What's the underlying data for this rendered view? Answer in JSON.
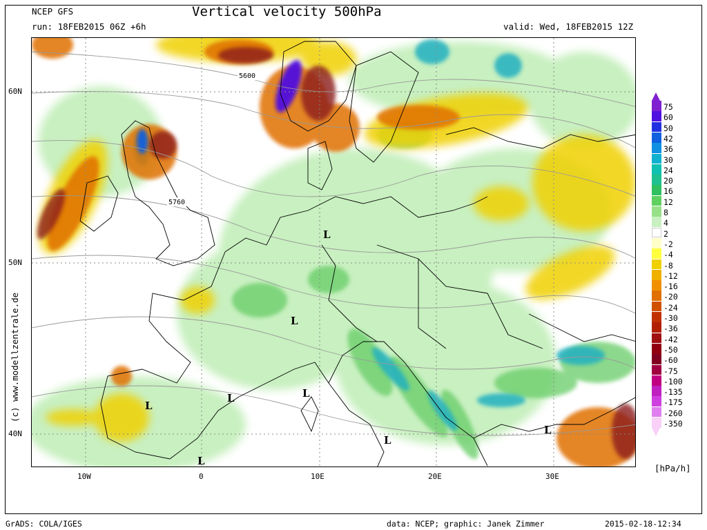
{
  "header": {
    "model": "NCEP GFS",
    "run": "run: 18FEB2015 06Z +6h",
    "title": "Vertical velocity 500hPa",
    "valid": "valid: Wed, 18FEB2015 12Z"
  },
  "map": {
    "lat_labels": [
      "60N",
      "50N",
      "40N"
    ],
    "lon_labels": [
      "10W",
      "0",
      "10E",
      "20E",
      "30E"
    ],
    "contour_labels": [
      "5600",
      "5760"
    ],
    "low_marker": "L",
    "colors": {
      "strong_up": "#8b1a1a",
      "up": "#d2691e",
      "weak_up": "#f0c020",
      "light_up": "#ffff80",
      "weak_down": "#c8f0c0",
      "down": "#66cc66",
      "strong_down": "#20a0a0",
      "vstrong_down": "#2040c8",
      "extreme_down": "#6010c0"
    }
  },
  "credit": "(c) www.modellzentrale.de",
  "legend": {
    "unit": "[hPa/h]",
    "levels": [
      {
        "label": "75",
        "color": "#8020d0"
      },
      {
        "label": "60",
        "color": "#5010e0"
      },
      {
        "label": "50",
        "color": "#2030e0"
      },
      {
        "label": "42",
        "color": "#1060e0"
      },
      {
        "label": "36",
        "color": "#1090e0"
      },
      {
        "label": "30",
        "color": "#10b0d0"
      },
      {
        "label": "24",
        "color": "#10c0b0"
      },
      {
        "label": "20",
        "color": "#20c090"
      },
      {
        "label": "16",
        "color": "#30c060"
      },
      {
        "label": "12",
        "color": "#60d060"
      },
      {
        "label": "8",
        "color": "#98e088"
      },
      {
        "label": "4",
        "color": "#c8f0c0"
      },
      {
        "label": "2",
        "color": "#ffffff"
      },
      {
        "label": "-2",
        "color": "#ffffc8"
      },
      {
        "label": "-4",
        "color": "#ffff40"
      },
      {
        "label": "-8",
        "color": "#f0d000"
      },
      {
        "label": "-12",
        "color": "#f0b000"
      },
      {
        "label": "-16",
        "color": "#f09000"
      },
      {
        "label": "-20",
        "color": "#e07000"
      },
      {
        "label": "-24",
        "color": "#d05000"
      },
      {
        "label": "-30",
        "color": "#c03000"
      },
      {
        "label": "-36",
        "color": "#b02000"
      },
      {
        "label": "-42",
        "color": "#a01010"
      },
      {
        "label": "-50",
        "color": "#900010"
      },
      {
        "label": "-60",
        "color": "#800020"
      },
      {
        "label": "-75",
        "color": "#a00040"
      },
      {
        "label": "-100",
        "color": "#c00080"
      },
      {
        "label": "-135",
        "color": "#c020c0"
      },
      {
        "label": "-175",
        "color": "#d040e0"
      },
      {
        "label": "-260",
        "color": "#e080f0"
      },
      {
        "label": "-350",
        "color": "#f8d0f8"
      }
    ]
  },
  "footer": {
    "software": "GrADS: COLA/IGES",
    "data": "data: NCEP; graphic: Janek Zimmer",
    "timestamp": "2015-02-18-12:34"
  }
}
